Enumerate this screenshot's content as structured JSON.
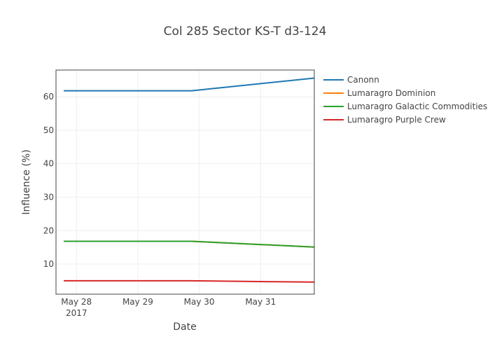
{
  "chart_data": {
    "type": "line",
    "title": "Col 285 Sector KS-T d3-124",
    "xlabel": "Date",
    "ylabel": "Influence (%)",
    "x": [
      "2017-05-27T19:00",
      "2017-05-29T21:00",
      "2017-05-31T21:00"
    ],
    "xlim": [
      "2017-05-27T16:00",
      "2017-05-31T21:00"
    ],
    "ylim": [
      1,
      68
    ],
    "x_ticks": [
      {
        "date": "2017-05-28",
        "label": "May 28",
        "sublabel": "2017"
      },
      {
        "date": "2017-05-29",
        "label": "May 29",
        "sublabel": ""
      },
      {
        "date": "2017-05-30",
        "label": "May 30",
        "sublabel": ""
      },
      {
        "date": "2017-05-31",
        "label": "May 31",
        "sublabel": ""
      }
    ],
    "y_ticks": [
      10,
      20,
      30,
      40,
      50,
      60
    ],
    "grid": true,
    "legend_position": "right",
    "series": [
      {
        "name": "Canonn",
        "color": "#1f77b4",
        "values": [
          61.8,
          61.8,
          65.6
        ]
      },
      {
        "name": "Lumaragro Dominion",
        "color": "#ff7f0e",
        "values": [
          16.8,
          16.8,
          15.1
        ]
      },
      {
        "name": "Lumaragro Galactic Commodities",
        "color": "#2ca02c",
        "values": [
          16.8,
          16.8,
          15.1
        ]
      },
      {
        "name": "Lumaragro Purple Crew",
        "color": "#d62728",
        "values": [
          5.0,
          5.0,
          4.6
        ]
      }
    ]
  }
}
